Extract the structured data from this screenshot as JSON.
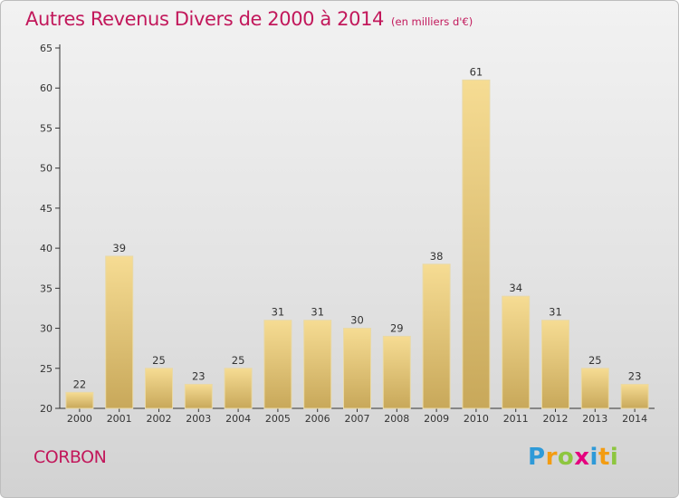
{
  "title": "Autres Revenus Divers de 2000 à 2014",
  "subtitle": "(en milliers d'€)",
  "commune": "CORBON",
  "logo": {
    "letters": [
      "P",
      "r",
      "o",
      "x",
      "i",
      "t",
      "i"
    ],
    "colors": [
      "#2e9ad8",
      "#f39c12",
      "#8dc63f",
      "#e5007e",
      "#2e9ad8",
      "#f39c12",
      "#8dc63f"
    ]
  },
  "colors": {
    "title": "#c2185b",
    "bar_top": "#f6dc93",
    "bar_bottom": "#c8a85a",
    "axis": "#333333"
  },
  "chart_data": {
    "type": "bar",
    "title": "Autres Revenus Divers de 2000 à 2014",
    "subtitle": "(en milliers d'€)",
    "categories": [
      "2000",
      "2001",
      "2002",
      "2003",
      "2004",
      "2005",
      "2006",
      "2007",
      "2008",
      "2009",
      "2010",
      "2011",
      "2012",
      "2013",
      "2014"
    ],
    "values": [
      22,
      39,
      25,
      23,
      25,
      31,
      31,
      30,
      29,
      38,
      61,
      34,
      31,
      25,
      23
    ],
    "ylim": [
      20,
      65
    ],
    "yticks": [
      20,
      25,
      30,
      35,
      40,
      45,
      50,
      55,
      60,
      65
    ],
    "xlabel": "",
    "ylabel": "",
    "grid": false,
    "legend": "none"
  }
}
